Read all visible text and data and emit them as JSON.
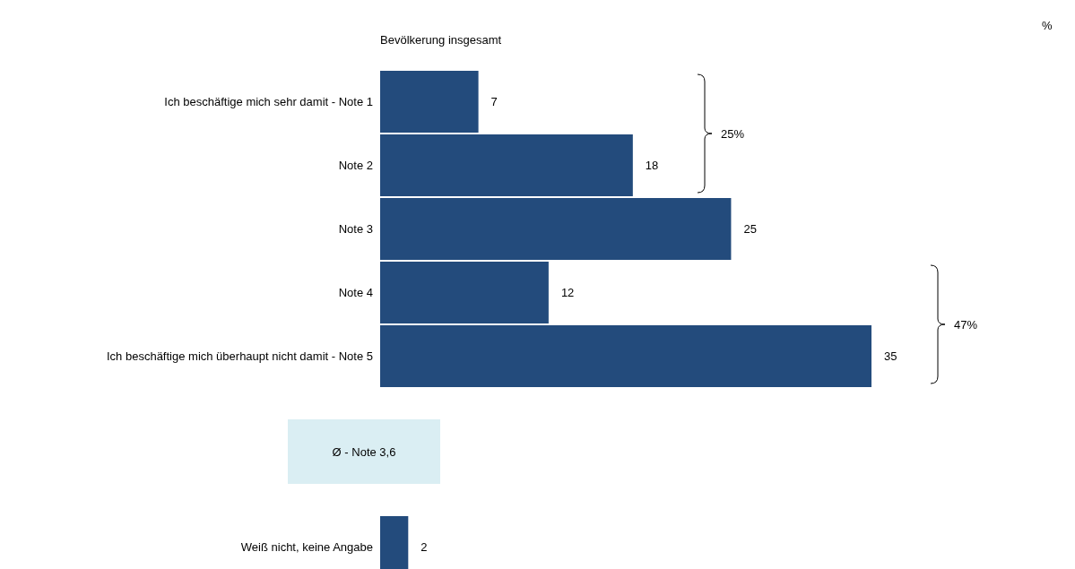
{
  "chart_data": {
    "type": "bar",
    "orientation": "horizontal",
    "title": "Bevölkerung insgesamt",
    "categories": [
      "Ich beschäftige mich sehr damit - Note 1",
      "Note 2",
      "Note 3",
      "Note 4",
      "Ich beschäftige mich überhaupt nicht damit - Note 5",
      null,
      null,
      "Weiß nicht, keine Angabe"
    ],
    "values": [
      7,
      18,
      25,
      12,
      35,
      null,
      null,
      2
    ],
    "color": "#234b7c",
    "data_labels": true,
    "annotations": [
      "%",
      "Ø - Note 3,6",
      "25%",
      "47%"
    ]
  }
}
